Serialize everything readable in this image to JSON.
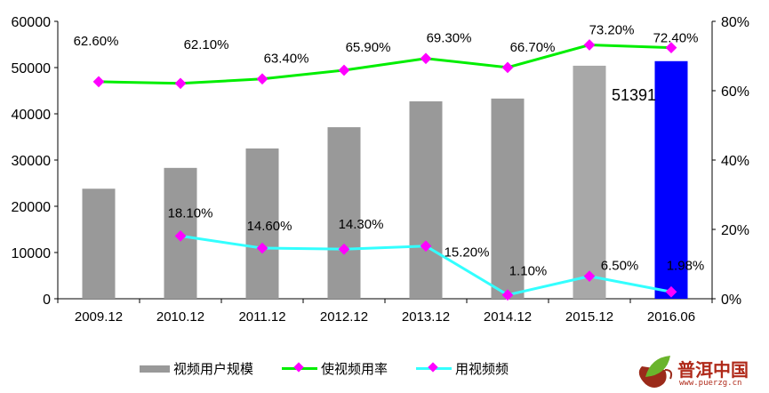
{
  "chart_data": {
    "type": "bar",
    "categories": [
      "2009.12",
      "2010.12",
      "2011.12",
      "2012.12",
      "2013.12",
      "2014.12",
      "2015.12",
      "2016.06"
    ],
    "left_axis": {
      "ylim": [
        0,
        60000
      ],
      "ticks": [
        "0",
        "10000",
        "20000",
        "30000",
        "40000",
        "50000",
        "60000"
      ]
    },
    "right_axis": {
      "ylim": [
        0,
        80
      ],
      "ticks": [
        "0%",
        "20%",
        "40%",
        "60%",
        "80%"
      ]
    },
    "series": [
      {
        "name": "视频用户规模",
        "type": "bar",
        "values": [
          23800,
          28300,
          32500,
          37100,
          42700,
          43300,
          50400,
          51391
        ],
        "colors": [
          "#999999",
          "#999999",
          "#999999",
          "#999999",
          "#999999",
          "#999999",
          "#a8a8a8",
          "#0000ff"
        ],
        "data_labels": [
          "",
          "",
          "",
          "",
          "",
          "",
          "",
          "51391"
        ]
      },
      {
        "name": "使视频用率",
        "type": "line",
        "axis": "right",
        "color": "#00ee00",
        "values": [
          62.6,
          62.1,
          63.4,
          65.9,
          69.3,
          66.7,
          73.2,
          72.4
        ],
        "data_labels": [
          "62.60%",
          "62.10%",
          "63.40%",
          "65.90%",
          "69.30%",
          "66.70%",
          "73.20%",
          "72.40%"
        ]
      },
      {
        "name": "用视频频",
        "type": "line",
        "axis": "right",
        "color": "#33ffff",
        "values": [
          null,
          18.1,
          14.6,
          14.3,
          15.2,
          1.1,
          6.5,
          1.98
        ],
        "data_labels": [
          "",
          "18.10%",
          "14.60%",
          "14.30%",
          "15.20%",
          "1.10%",
          "6.50%",
          "1.98%"
        ]
      }
    ],
    "marker_color": "#ff00ff",
    "legend": "bottom",
    "grid": false
  },
  "logo": {
    "text": "普洱中国",
    "url": "www.puerzg.cn"
  }
}
